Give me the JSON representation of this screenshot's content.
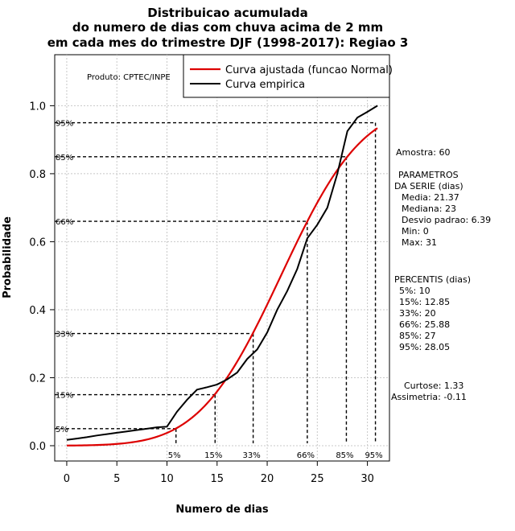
{
  "chart_data": {
    "type": "line",
    "title_lines": [
      "Distribuicao acumulada",
      "do numero de dias com chuva acima de 2 mm",
      "em cada mes do trimestre DJF (1998-2017): Regiao 3"
    ],
    "xlabel": "Numero de dias",
    "ylabel": "Probabilidade",
    "xlim": [
      -1.2,
      32.2
    ],
    "ylim": [
      -0.045,
      1.15
    ],
    "x_ticks": [
      0,
      5,
      10,
      15,
      20,
      25,
      30
    ],
    "y_ticks": [
      0.0,
      0.2,
      0.4,
      0.6,
      0.8,
      1.0
    ],
    "x_tick_labels": [
      "0",
      "5",
      "10",
      "15",
      "20",
      "25",
      "30"
    ],
    "y_tick_labels": [
      "0.0",
      "0.2",
      "0.4",
      "0.6",
      "0.8",
      "1.0"
    ],
    "grid": true,
    "product_label": "Produto: CPTEC/INPE",
    "legend": {
      "position": "top-right",
      "entries": [
        {
          "label": "Curva ajustada (funcao Normal)",
          "color": "#dd0000"
        },
        {
          "label": "Curva empirica",
          "color": "#000000"
        }
      ]
    },
    "fitted_normal": {
      "name": "Curva ajustada (funcao Normal)",
      "mean": 21.37,
      "sd": 6.39,
      "x_range": [
        0,
        31
      ],
      "color": "#dd0000"
    },
    "empirical": {
      "name": "Curva empirica",
      "color": "#000000",
      "x": [
        0,
        1,
        2,
        3,
        4,
        5,
        6,
        7,
        8,
        9,
        10,
        11,
        12,
        13,
        14,
        15,
        16,
        17,
        18,
        19,
        20,
        21,
        22,
        23,
        24,
        25,
        26,
        27,
        28,
        29,
        30,
        31
      ],
      "y": [
        0.017,
        0.021,
        0.025,
        0.03,
        0.034,
        0.038,
        0.042,
        0.046,
        0.05,
        0.054,
        0.056,
        0.1,
        0.135,
        0.165,
        0.172,
        0.18,
        0.195,
        0.215,
        0.255,
        0.283,
        0.333,
        0.4,
        0.455,
        0.52,
        0.61,
        0.65,
        0.7,
        0.8,
        0.925,
        0.965,
        0.982,
        1.0
      ]
    },
    "percentiles": [
      {
        "label": "5%",
        "y_label": "5%",
        "prob": 0.05,
        "days": 10
      },
      {
        "label": "15%",
        "y_label": "15%",
        "prob": 0.15,
        "days": 12.85
      },
      {
        "label": "33%",
        "y_label": "33%",
        "prob": 0.33,
        "days": 20
      },
      {
        "label": "66%",
        "y_label": "66%",
        "prob": 0.66,
        "days": 25.88
      },
      {
        "label": "85%",
        "y_label": "85%",
        "prob": 0.85,
        "days": 27
      },
      {
        "label": "95%",
        "y_label": "95%",
        "prob": 0.95,
        "days": 28.05
      }
    ],
    "percentile_marks": [
      {
        "prob": 0.05,
        "x_at_curve": 10.9
      },
      {
        "prob": 0.15,
        "x_at_curve": 14.8
      },
      {
        "prob": 0.33,
        "x_at_curve": 18.6
      },
      {
        "prob": 0.66,
        "x_at_curve": 24.0
      },
      {
        "prob": 0.85,
        "x_at_curve": 27.9
      },
      {
        "prob": 0.95,
        "x_at_curve": 30.8
      }
    ],
    "side_panel": {
      "amostra": "Amostra: 60",
      "parametros_title_1": "PARAMETROS",
      "parametros_title_2": "DA SERIE (dias)",
      "media": "Media: 21.37",
      "mediana": "Mediana: 23",
      "desvio": "Desvio padrao: 6.39",
      "min": "Min: 0",
      "max": "Max: 31",
      "percentis_title": "PERCENTIS (dias)",
      "p5": "5%: 10",
      "p15": "15%: 12.85",
      "p33": "33%: 20",
      "p66": "66%: 25.88",
      "p85": "85%: 27",
      "p95": "95%: 28.05",
      "curtose": "Curtose: 1.33",
      "assimetria": "Assimetria: -0.11"
    }
  }
}
